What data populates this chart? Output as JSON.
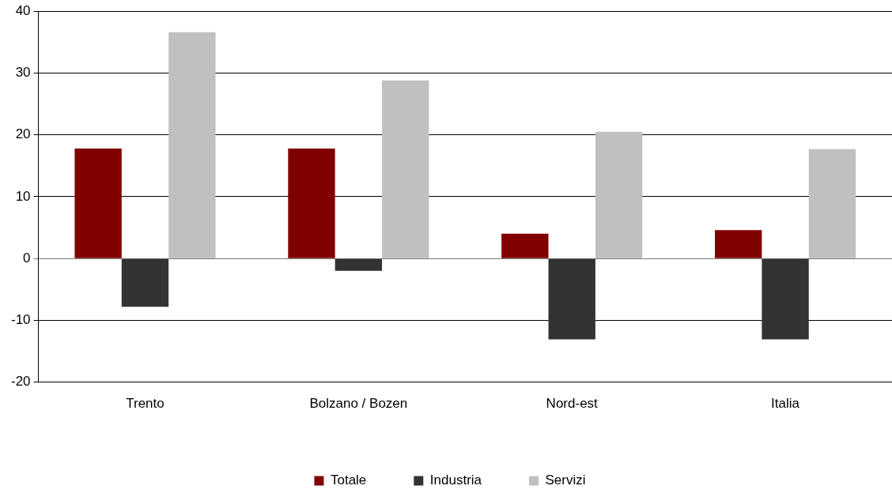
{
  "chart_data": {
    "type": "bar",
    "categories": [
      "Trento",
      "Bolzano / Bozen",
      "Nord-est",
      "Italia"
    ],
    "series": [
      {
        "name": "Totale",
        "color": "#800000",
        "values": [
          17.8,
          17.8,
          4.0,
          4.6
        ]
      },
      {
        "name": "Industria",
        "color": "#333333",
        "values": [
          -7.8,
          -2.0,
          -13.1,
          -13.1
        ]
      },
      {
        "name": "Servizi",
        "color": "#c0c0c0",
        "values": [
          36.6,
          28.8,
          20.5,
          17.7
        ]
      }
    ],
    "ylim": [
      -20,
      40
    ],
    "yticks": [
      -20,
      -10,
      0,
      10,
      20,
      30,
      40
    ],
    "grid": "y",
    "legend": "bottom"
  }
}
